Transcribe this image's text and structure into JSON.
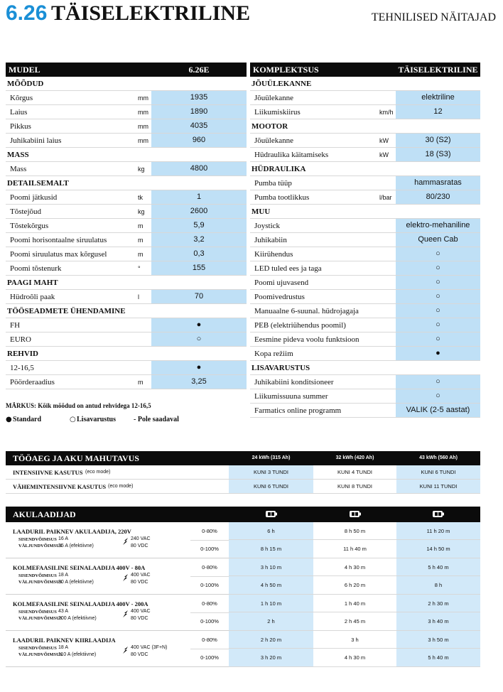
{
  "header": {
    "model": "6.26",
    "title": "TÄISELEKTRILINE",
    "subtitle": "TEHNILISED NÄITAJAD"
  },
  "left_table": {
    "header": [
      "MUDEL",
      "6.26E"
    ],
    "sections": [
      {
        "title": "MÕÕDUD",
        "rows": [
          {
            "label": "Kõrgus",
            "unit": "mm",
            "value": "1935"
          },
          {
            "label": "Laius",
            "unit": "mm",
            "value": "1890"
          },
          {
            "label": "Pikkus",
            "unit": "mm",
            "value": "4035"
          },
          {
            "label": "Juhikabiini laius",
            "unit": "mm",
            "value": "960"
          }
        ]
      },
      {
        "title": "MASS",
        "rows": [
          {
            "label": "Mass",
            "unit": "kg",
            "value": "4800"
          }
        ]
      },
      {
        "title": "DETAILSEMALT",
        "rows": [
          {
            "label": "Poomi jätkusid",
            "unit": "tk",
            "value": "1"
          },
          {
            "label": "Tõstejõud",
            "unit": "kg",
            "value": "2600"
          },
          {
            "label": "Tõstekõrgus",
            "unit": "m",
            "value": "5,9"
          },
          {
            "label": "Poomi horisontaalne siruulatus",
            "unit": "m",
            "value": "3,2"
          },
          {
            "label": "Poomi siruulatus max kõrgusel",
            "unit": "m",
            "value": "0,3"
          },
          {
            "label": "Poomi tõstenurk",
            "unit": "°",
            "value": "155"
          }
        ]
      },
      {
        "title": "PAAGI MAHT",
        "rows": [
          {
            "label": "Hüdroõli paak",
            "unit": "l",
            "value": "70"
          }
        ]
      },
      {
        "title": "TÖÖSEADMETE ÜHENDAMINE",
        "rows": [
          {
            "label": "FH",
            "value": "●"
          },
          {
            "label": "EURO",
            "value": "○"
          }
        ]
      },
      {
        "title": "REHVID",
        "rows": [
          {
            "label": "12-16,5",
            "value": "●"
          },
          {
            "label": "Pöörderaadius",
            "unit": "m",
            "value": "3,25"
          }
        ]
      }
    ]
  },
  "right_table": {
    "header": [
      "KOMPLEKTSUS",
      "TÄISELEKTRILINE"
    ],
    "sections": [
      {
        "title": "JÕUÜLEKANNE",
        "rows": [
          {
            "label": "Jõuülekanne",
            "value": "elektriline"
          },
          {
            "label": "Liikumiskiirus",
            "unit": "km/h",
            "value": "12"
          }
        ]
      },
      {
        "title": "MOOTOR",
        "rows": [
          {
            "label": "Jõuülekanne",
            "unit": "kW",
            "value": "30 (S2)"
          },
          {
            "label": "Hüdraulika käitamiseks",
            "unit": "kW",
            "value": "18 (S3)"
          }
        ]
      },
      {
        "title": "HÜDRAULIKA",
        "rows": [
          {
            "label": "Pumba tüüp",
            "value": "hammasratas"
          },
          {
            "label": "Pumba tootlikkus",
            "unit": "l/bar",
            "value": "80/230"
          }
        ]
      },
      {
        "title": "MUU",
        "rows": [
          {
            "label": "Joystick",
            "value": "elektro-mehaniline"
          },
          {
            "label": "Juhikabiin",
            "value": "Queen Cab"
          },
          {
            "label": "Kiirühendus",
            "value": "○"
          },
          {
            "label": "LED tuled ees ja taga",
            "value": "○"
          },
          {
            "label": "Poomi ujuvasend",
            "value": "○"
          },
          {
            "label": "Poomivedrustus",
            "value": "○"
          },
          {
            "label": "Manuaalne 6-suunal. hüdrojagaja",
            "value": "○"
          },
          {
            "label": "PEB (elektriühendus poomil)",
            "value": "○"
          },
          {
            "label": "Eesmine pideva voolu funktsioon",
            "value": "○"
          },
          {
            "label": "Kopa režiim",
            "value": "●"
          }
        ]
      },
      {
        "title": "LISAVARUSTUS",
        "rows": [
          {
            "label": "Juhikabiini konditsioneer",
            "value": "○"
          },
          {
            "label": "Liikumissuuna summer",
            "value": "○"
          },
          {
            "label": "Farmatics online programm",
            "value": "VALIK (2-5 aastat)"
          }
        ]
      }
    ]
  },
  "note": "MÄRKUS: Kõik mõõdud on antud rehvidega 12-16,5",
  "legend": [
    {
      "symbol": "●",
      "label": "Standard"
    },
    {
      "symbol": "○",
      "label": "Lisavarustus"
    },
    {
      "label": "- Pole saadaval"
    }
  ],
  "runtime": {
    "title": "TÖÖAEG JA AKU MAHUTAVUS",
    "columns": [
      "24 kWh (315 Ah)",
      "32 kWh (420 Ah)",
      "43 kWh (560 Ah)"
    ],
    "rows": [
      {
        "label": "INTENSIIVNE KASUTUS",
        "note": "(eco mode)",
        "values": [
          "KUNI 3 TUNDI",
          "KUNI 4 TUNDI",
          "KUNI 6 TUNDI"
        ]
      },
      {
        "label": "VÄHEMINTENSIIVNE KASUTUS",
        "note": "(eco mode)",
        "values": [
          "KUNI 6 TUNDI",
          "KUNI 8 TUNDI",
          "KUNI 11 TUNDI"
        ]
      }
    ]
  },
  "chargers": {
    "title": "AKULAADIJAD",
    "input_label": "SISENDVÕIMSUS",
    "output_label": "VÄLJUNDVÕIMSUS",
    "items": [
      {
        "name": "LAADURIL PAIKNEV AKULAADIJA, 220V",
        "input": "16 A",
        "output": "35 A (efektiivne)",
        "voltage_in": "240 VAC",
        "voltage_out": "80 VDC",
        "rows": [
          {
            "range": "0-80%",
            "times": [
              "6 h",
              "8 h 50 m",
              "11 h 20 m"
            ]
          },
          {
            "range": "0-100%",
            "times": [
              "8 h 15 m",
              "11 h 40 m",
              "14 h 50 m"
            ]
          }
        ]
      },
      {
        "name": "KOLMEFAASILINE SEINALAADIJA 400V - 80A",
        "input": "18 A",
        "output": "80 A (efektiivne)",
        "voltage_in": "400 VAC",
        "voltage_out": "80 VDC",
        "rows": [
          {
            "range": "0-80%",
            "times": [
              "3 h 10 m",
              "4 h 30 m",
              "5 h 40 m"
            ]
          },
          {
            "range": "0-100%",
            "times": [
              "4 h 50 m",
              "6 h 20 m",
              "8 h"
            ]
          }
        ]
      },
      {
        "name": "KOLMEFAASILINE SEINALAADIJA 400V - 200A",
        "input": "43 A",
        "output": "200 A (efektiivne)",
        "voltage_in": "400 VAC",
        "voltage_out": "80 VDC",
        "rows": [
          {
            "range": "0-80%",
            "times": [
              "1 h 10 m",
              "1 h 40 m",
              "2 h 30 m"
            ]
          },
          {
            "range": "0-100%",
            "times": [
              "2 h",
              "2 h 45 m",
              "3 h 40 m"
            ]
          }
        ]
      },
      {
        "name": "LAADURIL PAIKNEV KIIRLAADIJA",
        "input": "18 A",
        "output": "110 A (efektiivne)",
        "voltage_in": "400 VAC (3F+N)",
        "voltage_out": "80 VDC",
        "rows": [
          {
            "range": "0-80%",
            "times": [
              "2 h 20 m",
              "3 h",
              "3 h 50 m"
            ]
          },
          {
            "range": "0-100%",
            "times": [
              "3 h 20 m",
              "4 h 30 m",
              "5 h 40 m"
            ]
          }
        ]
      }
    ]
  }
}
